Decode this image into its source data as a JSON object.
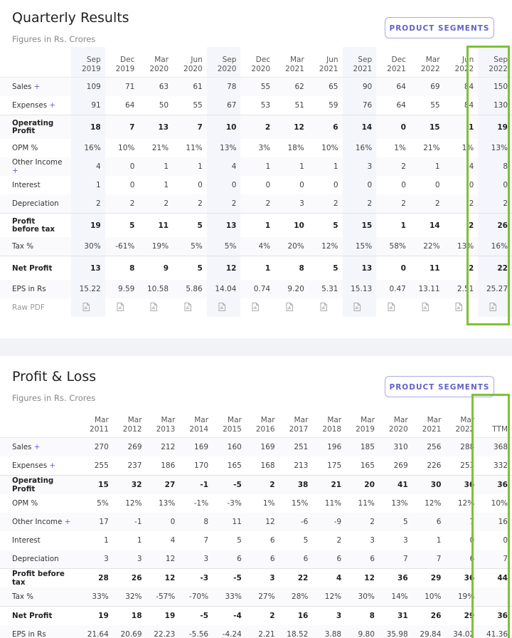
{
  "quarterly": {
    "title": "Quarterly Results",
    "subtitle": "Figures in Rs. Crores",
    "button": "PRODUCT SEGMENTS",
    "columns": [
      "Sep 2019",
      "Dec 2019",
      "Mar 2020",
      "Jun 2020",
      "Sep 2020",
      "Dec 2020",
      "Mar 2021",
      "Jun 2021",
      "Sep 2021",
      "Dec 2021",
      "Mar 2022",
      "Jun 2022",
      "Sep 2022"
    ],
    "rows": [
      {
        "label": "Sales",
        "toggle": "+",
        "values": [
          "109",
          "71",
          "63",
          "61",
          "78",
          "55",
          "62",
          "65",
          "90",
          "64",
          "69",
          "84",
          "150"
        ]
      },
      {
        "label": "Expenses",
        "toggle": "+",
        "values": [
          "91",
          "64",
          "50",
          "55",
          "67",
          "53",
          "51",
          "59",
          "76",
          "64",
          "55",
          "84",
          "130"
        ]
      },
      {
        "label": "Operating Profit",
        "values": [
          "18",
          "7",
          "13",
          "7",
          "10",
          "2",
          "12",
          "6",
          "14",
          "0",
          "15",
          "1",
          "19"
        ]
      },
      {
        "label": "OPM %",
        "values": [
          "16%",
          "10%",
          "21%",
          "11%",
          "13%",
          "3%",
          "18%",
          "10%",
          "16%",
          "1%",
          "21%",
          "1%",
          "13%"
        ]
      },
      {
        "label": "Other Income",
        "toggle": "+",
        "values": [
          "4",
          "0",
          "1",
          "1",
          "4",
          "1",
          "1",
          "1",
          "3",
          "2",
          "1",
          "4",
          "8"
        ]
      },
      {
        "label": "Interest",
        "values": [
          "1",
          "0",
          "1",
          "0",
          "0",
          "0",
          "0",
          "0",
          "0",
          "0",
          "0",
          "0",
          "0"
        ]
      },
      {
        "label": "Depreciation",
        "values": [
          "2",
          "2",
          "2",
          "2",
          "2",
          "2",
          "3",
          "2",
          "2",
          "2",
          "2",
          "2",
          "2"
        ]
      },
      {
        "label": "Profit before tax",
        "values": [
          "19",
          "5",
          "11",
          "5",
          "13",
          "1",
          "10",
          "5",
          "15",
          "1",
          "14",
          "2",
          "26"
        ]
      },
      {
        "label": "Tax %",
        "values": [
          "30%",
          "-61%",
          "19%",
          "5%",
          "5%",
          "4%",
          "20%",
          "12%",
          "15%",
          "58%",
          "22%",
          "13%",
          "16%"
        ]
      },
      {
        "label": "Net Profit",
        "values": [
          "13",
          "8",
          "9",
          "5",
          "12",
          "1",
          "8",
          "5",
          "13",
          "0",
          "11",
          "2",
          "22"
        ]
      },
      {
        "label": "EPS in Rs",
        "values": [
          "15.22",
          "9.59",
          "10.58",
          "5.86",
          "14.04",
          "0.74",
          "9.20",
          "5.31",
          "15.13",
          "0.47",
          "13.11",
          "2.51",
          "25.27"
        ]
      }
    ],
    "raw_pdf": "Raw PDF"
  },
  "profit_loss": {
    "title": "Profit & Loss",
    "subtitle": "Figures in Rs. Crores",
    "button": "PRODUCT SEGMENTS",
    "columns": [
      "Mar 2011",
      "Mar 2012",
      "Mar 2013",
      "Mar 2014",
      "Mar 2015",
      "Mar 2016",
      "Mar 2017",
      "Mar 2018",
      "Mar 2019",
      "Mar 2020",
      "Mar 2021",
      "Mar 2022",
      "TTM"
    ],
    "rows": [
      {
        "label": "Sales",
        "toggle": "+",
        "values": [
          "270",
          "269",
          "212",
          "169",
          "160",
          "169",
          "251",
          "196",
          "185",
          "310",
          "256",
          "288",
          "368"
        ]
      },
      {
        "label": "Expenses",
        "toggle": "+",
        "values": [
          "255",
          "237",
          "186",
          "170",
          "165",
          "168",
          "213",
          "175",
          "165",
          "269",
          "226",
          "253",
          "332"
        ]
      },
      {
        "label": "Operating Profit",
        "values": [
          "15",
          "32",
          "27",
          "-1",
          "-5",
          "2",
          "38",
          "21",
          "20",
          "41",
          "30",
          "36",
          "36"
        ]
      },
      {
        "label": "OPM %",
        "values": [
          "5%",
          "12%",
          "13%",
          "-1%",
          "-3%",
          "1%",
          "15%",
          "11%",
          "11%",
          "13%",
          "12%",
          "12%",
          "10%"
        ]
      },
      {
        "label": "Other Income",
        "toggle": "+",
        "values": [
          "17",
          "-1",
          "0",
          "8",
          "11",
          "12",
          "-6",
          "-9",
          "2",
          "5",
          "6",
          "7",
          "16"
        ]
      },
      {
        "label": "Interest",
        "values": [
          "1",
          "1",
          "4",
          "7",
          "5",
          "6",
          "5",
          "2",
          "3",
          "3",
          "1",
          "0",
          "0"
        ]
      },
      {
        "label": "Depreciation",
        "values": [
          "3",
          "3",
          "12",
          "3",
          "6",
          "6",
          "6",
          "6",
          "6",
          "7",
          "7",
          "6",
          "7"
        ]
      },
      {
        "label": "Profit before tax",
        "values": [
          "28",
          "26",
          "12",
          "-3",
          "-5",
          "3",
          "22",
          "4",
          "12",
          "36",
          "29",
          "36",
          "44"
        ]
      },
      {
        "label": "Tax %",
        "values": [
          "33%",
          "32%",
          "-57%",
          "-70%",
          "33%",
          "27%",
          "28%",
          "12%",
          "30%",
          "14%",
          "10%",
          "19%",
          null
        ]
      },
      {
        "label": "Net Profit",
        "values": [
          "19",
          "18",
          "19",
          "-5",
          "-4",
          "2",
          "16",
          "3",
          "8",
          "31",
          "26",
          "29",
          "36"
        ]
      },
      {
        "label": "EPS in Rs",
        "values": [
          "21.64",
          "20.69",
          "22.23",
          "-5.56",
          "-4.24",
          "2.21",
          "18.52",
          "3.88",
          "9.80",
          "35.98",
          "29.84",
          "34.02",
          "41.36"
        ]
      }
    ]
  }
}
